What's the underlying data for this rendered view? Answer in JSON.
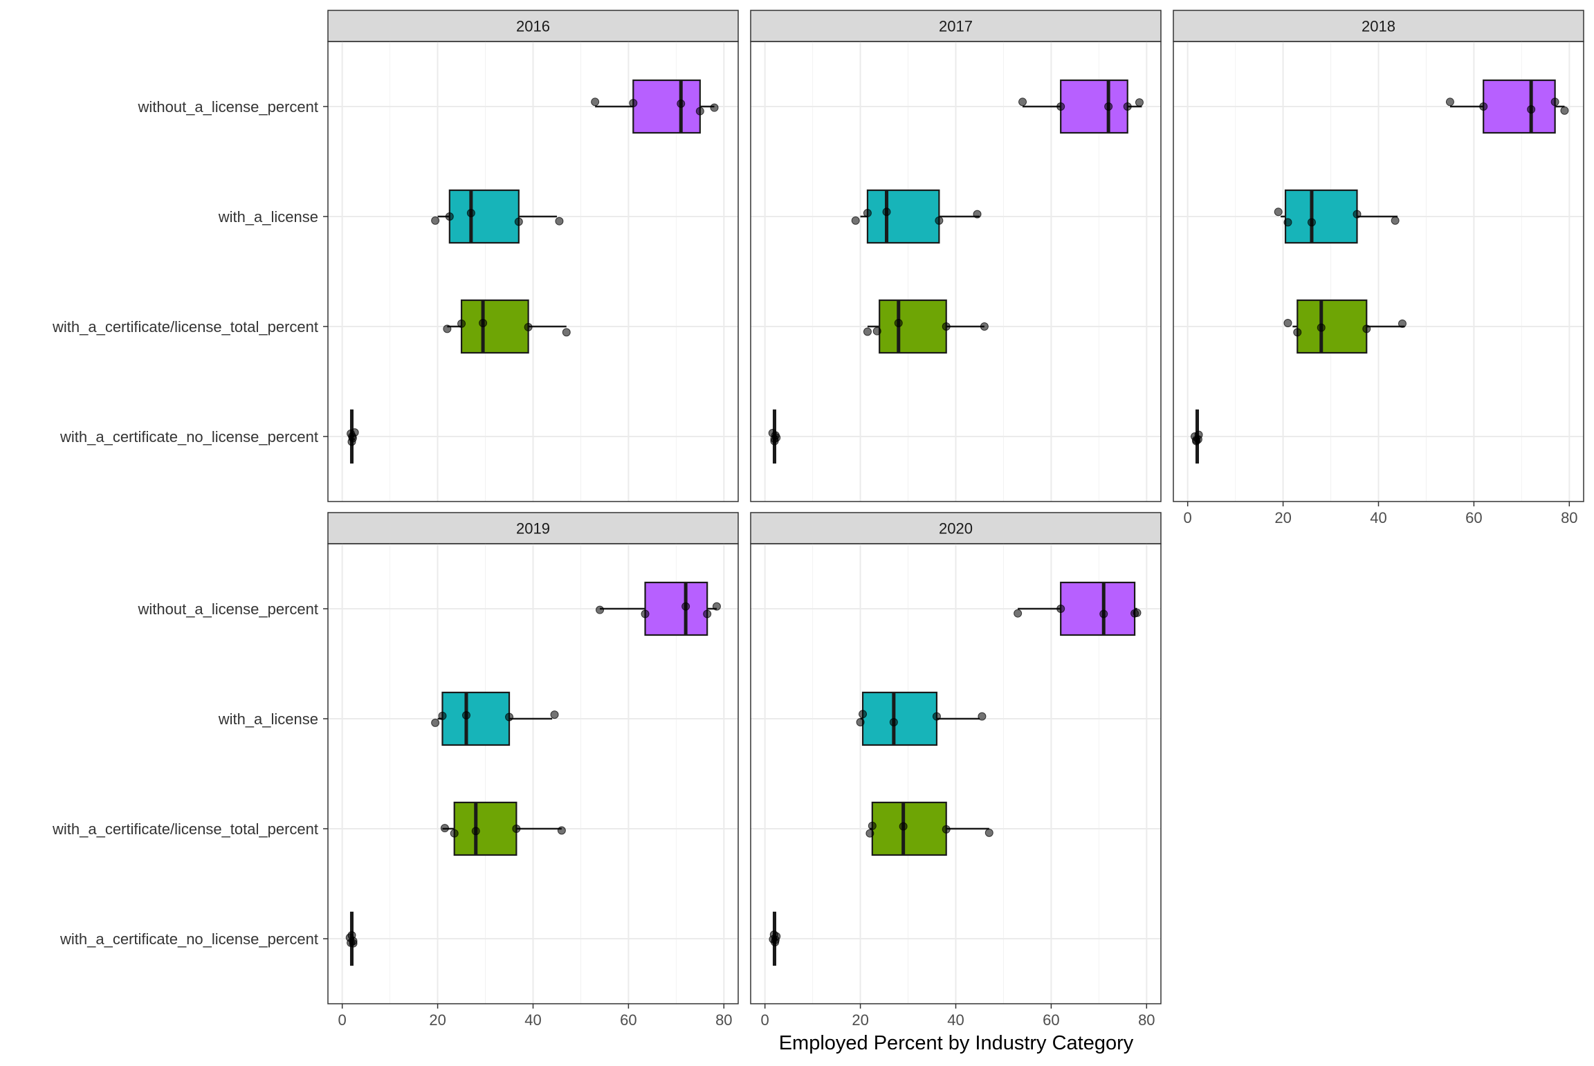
{
  "chart_data": {
    "type": "boxplot",
    "xlabel": "Employed Percent by Industry Category",
    "ylabel": "",
    "xlim": [
      -3,
      83
    ],
    "x_ticks": [
      "0",
      "20",
      "40",
      "60",
      "80"
    ],
    "categories": [
      "without_a_license_percent",
      "with_a_license",
      "with_a_certificate/license_total_percent",
      "with_a_certificate_no_license_percent"
    ],
    "fill_colors": {
      "without_a_license_percent": "#b760ff",
      "with_a_license": "#17b4b9",
      "with_a_certificate/license_total_percent": "#6ea505",
      "with_a_certificate_no_license_percent": "#f8766d"
    },
    "grid": true,
    "legend": "none",
    "panels": [
      {
        "title": "2016",
        "boxes": [
          {
            "category": "without_a_license_percent",
            "min": 53,
            "q1": 61,
            "median": 71,
            "q3": 75,
            "max": 78,
            "points": [
              [
                53,
                -0.08
              ],
              [
                61,
                -0.06
              ],
              [
                71,
                -0.05
              ],
              [
                75,
                0.08
              ],
              [
                78,
                0.02
              ]
            ]
          },
          {
            "category": "with_a_license",
            "min": 20,
            "q1": 22.5,
            "median": 27,
            "q3": 37,
            "max": 45,
            "points": [
              [
                19.5,
                0.07
              ],
              [
                22.5,
                0.0
              ],
              [
                27,
                -0.06
              ],
              [
                37,
                0.09
              ],
              [
                45.5,
                0.08
              ]
            ]
          },
          {
            "category": "with_a_certificate/license_total_percent",
            "min": 22,
            "q1": 25,
            "median": 29.5,
            "q3": 39,
            "max": 47,
            "points": [
              [
                22,
                0.04
              ],
              [
                25,
                -0.05
              ],
              [
                29.5,
                -0.06
              ],
              [
                39,
                0.01
              ],
              [
                47,
                0.1
              ]
            ]
          },
          {
            "category": "with_a_certificate_no_license_percent",
            "min": 1.5,
            "q1": 1.8,
            "median": 2,
            "q3": 2.2,
            "max": 2.5,
            "points": [
              [
                2,
                0.09
              ],
              [
                2.1,
                0.0
              ],
              [
                1.8,
                -0.05
              ],
              [
                2.6,
                -0.07
              ],
              [
                2.2,
                0.03
              ]
            ]
          }
        ]
      },
      {
        "title": "2017",
        "boxes": [
          {
            "category": "without_a_license_percent",
            "min": 54,
            "q1": 62,
            "median": 72,
            "q3": 76,
            "max": 79,
            "points": [
              [
                54,
                -0.08
              ],
              [
                62,
                0.0
              ],
              [
                72,
                0.0
              ],
              [
                76,
                0.0
              ],
              [
                78.5,
                -0.07
              ]
            ]
          },
          {
            "category": "with_a_license",
            "min": 20,
            "q1": 21.5,
            "median": 25.5,
            "q3": 36.5,
            "max": 45,
            "points": [
              [
                19,
                0.07
              ],
              [
                21.5,
                -0.06
              ],
              [
                25.5,
                -0.08
              ],
              [
                36.5,
                0.07
              ],
              [
                44.5,
                -0.04
              ]
            ]
          },
          {
            "category": "with_a_certificate/license_total_percent",
            "min": 21.5,
            "q1": 24,
            "median": 28,
            "q3": 38,
            "max": 46,
            "points": [
              [
                21.5,
                0.09
              ],
              [
                23.5,
                0.08
              ],
              [
                28,
                -0.06
              ],
              [
                38,
                0.0
              ],
              [
                46,
                0.0
              ]
            ]
          },
          {
            "category": "with_a_certificate_no_license_percent",
            "min": 1.5,
            "q1": 1.8,
            "median": 2,
            "q3": 2.2,
            "max": 2.5,
            "points": [
              [
                2,
                0.08
              ],
              [
                2.2,
                -0.02
              ],
              [
                1.6,
                -0.06
              ],
              [
                2.4,
                0.02
              ],
              [
                2.0,
                0.04
              ]
            ]
          }
        ]
      },
      {
        "title": "2018",
        "boxes": [
          {
            "category": "without_a_license_percent",
            "min": 55,
            "q1": 62,
            "median": 72,
            "q3": 77,
            "max": 79,
            "points": [
              [
                55,
                -0.08
              ],
              [
                62,
                0.0
              ],
              [
                72,
                0.05
              ],
              [
                77,
                -0.08
              ],
              [
                79,
                0.07
              ]
            ]
          },
          {
            "category": "with_a_license",
            "min": 19.5,
            "q1": 20.5,
            "median": 26,
            "q3": 35.5,
            "max": 44,
            "points": [
              [
                19,
                -0.08
              ],
              [
                21,
                0.1
              ],
              [
                26,
                0.1
              ],
              [
                35.5,
                -0.04
              ],
              [
                43.5,
                0.07
              ]
            ]
          },
          {
            "category": "with_a_certificate/license_total_percent",
            "min": 22,
            "q1": 23,
            "median": 28,
            "q3": 37.5,
            "max": 45.5,
            "points": [
              [
                21,
                -0.06
              ],
              [
                23,
                0.1
              ],
              [
                28,
                0.02
              ],
              [
                37.5,
                0.04
              ],
              [
                45,
                -0.05
              ]
            ]
          },
          {
            "category": "with_a_certificate_no_license_percent",
            "min": 1.5,
            "q1": 1.8,
            "median": 2,
            "q3": 2.2,
            "max": 2.5,
            "points": [
              [
                1.8,
                0.08
              ],
              [
                2.2,
                0.05
              ],
              [
                1.5,
                0.0
              ],
              [
                2.3,
                -0.03
              ],
              [
                1.8,
                0.06
              ]
            ]
          }
        ]
      },
      {
        "title": "2019",
        "boxes": [
          {
            "category": "without_a_license_percent",
            "min": 54,
            "q1": 63.5,
            "median": 72,
            "q3": 76.5,
            "max": 78.5,
            "points": [
              [
                54,
                0.02
              ],
              [
                63.5,
                0.09
              ],
              [
                72,
                -0.04
              ],
              [
                76.5,
                0.09
              ],
              [
                78.5,
                -0.04
              ]
            ]
          },
          {
            "category": "with_a_license",
            "min": 20,
            "q1": 21,
            "median": 26,
            "q3": 35,
            "max": 44,
            "points": [
              [
                19.5,
                0.07
              ],
              [
                21,
                -0.05
              ],
              [
                26,
                -0.06
              ],
              [
                35,
                -0.03
              ],
              [
                44.5,
                -0.07
              ]
            ]
          },
          {
            "category": "with_a_certificate/license_total_percent",
            "min": 21,
            "q1": 23.5,
            "median": 28,
            "q3": 36.5,
            "max": 46,
            "points": [
              [
                21.5,
                -0.01
              ],
              [
                23.5,
                0.08
              ],
              [
                28,
                0.04
              ],
              [
                36.5,
                0.0
              ],
              [
                46,
                0.03
              ]
            ]
          },
          {
            "category": "with_a_certificate_no_license_percent",
            "min": 1.5,
            "q1": 1.8,
            "median": 2,
            "q3": 2.2,
            "max": 2.5,
            "points": [
              [
                1.8,
                0.07
              ],
              [
                2.3,
                0.04
              ],
              [
                2.0,
                -0.06
              ],
              [
                1.6,
                -0.02
              ],
              [
                2.3,
                0.08
              ]
            ]
          }
        ]
      },
      {
        "title": "2020",
        "boxes": [
          {
            "category": "without_a_license_percent",
            "min": 53,
            "q1": 62,
            "median": 71,
            "q3": 77.5,
            "max": 78,
            "points": [
              [
                53,
                0.08
              ],
              [
                62,
                0.0
              ],
              [
                71,
                0.09
              ],
              [
                77.5,
                0.08
              ],
              [
                78,
                0.07
              ]
            ]
          },
          {
            "category": "with_a_license",
            "min": 20,
            "q1": 20.5,
            "median": 27,
            "q3": 36,
            "max": 45,
            "points": [
              [
                20,
                0.06
              ],
              [
                20.5,
                -0.08
              ],
              [
                27,
                0.06
              ],
              [
                36,
                -0.04
              ],
              [
                45.5,
                -0.04
              ]
            ]
          },
          {
            "category": "with_a_certificate/license_total_percent",
            "min": 22,
            "q1": 22.5,
            "median": 29,
            "q3": 38,
            "max": 47,
            "points": [
              [
                22,
                0.08
              ],
              [
                22.5,
                -0.05
              ],
              [
                29,
                -0.04
              ],
              [
                38,
                0.01
              ],
              [
                47,
                0.07
              ]
            ]
          },
          {
            "category": "with_a_certificate_no_license_percent",
            "min": 1.5,
            "q1": 1.8,
            "median": 2,
            "q3": 2.2,
            "max": 2.5,
            "points": [
              [
                2.1,
                0.06
              ],
              [
                1.7,
                0.01
              ],
              [
                2.4,
                -0.04
              ],
              [
                1.9,
                -0.07
              ],
              [
                2.2,
                0.02
              ]
            ]
          }
        ]
      }
    ]
  }
}
